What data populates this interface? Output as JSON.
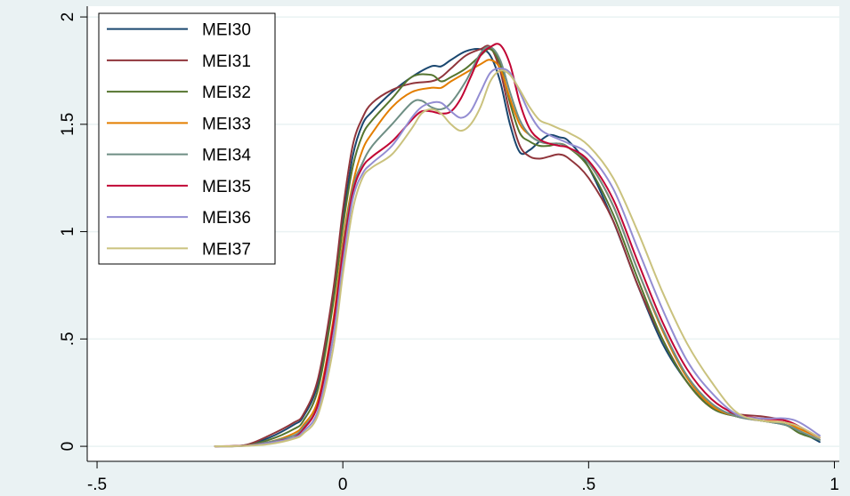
{
  "chart_data": {
    "type": "line",
    "title": "",
    "xlabel": "",
    "ylabel": "",
    "xlim": [
      -0.52,
      1.01
    ],
    "ylim": [
      -0.07,
      2.05
    ],
    "x_ticks": [
      -0.5,
      0,
      0.5,
      1
    ],
    "x_tick_labels": [
      "-.5",
      "0",
      ".5",
      "1"
    ],
    "y_ticks": [
      0,
      0.5,
      1,
      1.5,
      2
    ],
    "y_tick_labels": [
      "0",
      ".5",
      "1",
      "1.5",
      "2"
    ],
    "grid": "horizontal",
    "legend_position": "top-left",
    "series": [
      {
        "name": "MEI30",
        "color": "#1a476f",
        "x": [
          -0.26,
          -0.2,
          -0.15,
          -0.1,
          -0.08,
          -0.05,
          -0.02,
          0,
          0.02,
          0.04,
          0.06,
          0.1,
          0.14,
          0.18,
          0.2,
          0.22,
          0.25,
          0.28,
          0.3,
          0.32,
          0.34,
          0.36,
          0.38,
          0.4,
          0.42,
          0.44,
          0.46,
          0.5,
          0.55,
          0.6,
          0.65,
          0.7,
          0.75,
          0.8,
          0.85,
          0.9,
          0.93,
          0.97
        ],
        "y": [
          0,
          0.005,
          0.04,
          0.1,
          0.14,
          0.3,
          0.7,
          1.05,
          1.35,
          1.5,
          1.56,
          1.65,
          1.72,
          1.77,
          1.77,
          1.8,
          1.84,
          1.85,
          1.82,
          1.7,
          1.5,
          1.37,
          1.38,
          1.42,
          1.45,
          1.44,
          1.42,
          1.3,
          1.05,
          0.75,
          0.48,
          0.3,
          0.18,
          0.14,
          0.12,
          0.1,
          0.07,
          0.02
        ]
      },
      {
        "name": "MEI31",
        "color": "#90353b",
        "x": [
          -0.26,
          -0.2,
          -0.15,
          -0.1,
          -0.08,
          -0.05,
          -0.02,
          0,
          0.02,
          0.04,
          0.06,
          0.1,
          0.14,
          0.18,
          0.2,
          0.22,
          0.25,
          0.28,
          0.3,
          0.32,
          0.34,
          0.36,
          0.38,
          0.4,
          0.42,
          0.44,
          0.46,
          0.5,
          0.55,
          0.6,
          0.65,
          0.7,
          0.75,
          0.8,
          0.85,
          0.9,
          0.93,
          0.97
        ],
        "y": [
          0,
          0.005,
          0.05,
          0.11,
          0.15,
          0.32,
          0.72,
          1.1,
          1.4,
          1.53,
          1.6,
          1.66,
          1.69,
          1.7,
          1.72,
          1.76,
          1.82,
          1.85,
          1.86,
          1.75,
          1.55,
          1.4,
          1.35,
          1.34,
          1.35,
          1.36,
          1.34,
          1.25,
          1.05,
          0.75,
          0.5,
          0.3,
          0.18,
          0.15,
          0.14,
          0.12,
          0.09,
          0.04
        ]
      },
      {
        "name": "MEI32",
        "color": "#55752f",
        "x": [
          -0.26,
          -0.2,
          -0.15,
          -0.1,
          -0.08,
          -0.05,
          -0.02,
          0,
          0.02,
          0.04,
          0.06,
          0.1,
          0.14,
          0.18,
          0.2,
          0.22,
          0.25,
          0.28,
          0.3,
          0.32,
          0.34,
          0.36,
          0.38,
          0.4,
          0.42,
          0.44,
          0.46,
          0.5,
          0.55,
          0.6,
          0.65,
          0.7,
          0.75,
          0.8,
          0.85,
          0.9,
          0.93,
          0.97
        ],
        "y": [
          0,
          0.003,
          0.03,
          0.08,
          0.12,
          0.27,
          0.66,
          1.02,
          1.3,
          1.45,
          1.52,
          1.62,
          1.72,
          1.73,
          1.7,
          1.72,
          1.76,
          1.82,
          1.85,
          1.78,
          1.6,
          1.46,
          1.42,
          1.4,
          1.4,
          1.41,
          1.39,
          1.3,
          1.08,
          0.78,
          0.5,
          0.3,
          0.18,
          0.14,
          0.12,
          0.1,
          0.06,
          0.03
        ]
      },
      {
        "name": "MEI33",
        "color": "#e37e00",
        "x": [
          -0.26,
          -0.2,
          -0.15,
          -0.1,
          -0.08,
          -0.05,
          -0.02,
          0,
          0.02,
          0.04,
          0.06,
          0.1,
          0.14,
          0.18,
          0.2,
          0.22,
          0.25,
          0.28,
          0.3,
          0.32,
          0.34,
          0.36,
          0.38,
          0.4,
          0.42,
          0.44,
          0.46,
          0.5,
          0.55,
          0.6,
          0.65,
          0.7,
          0.75,
          0.8,
          0.85,
          0.9,
          0.93,
          0.97
        ],
        "y": [
          0,
          0.003,
          0.02,
          0.06,
          0.1,
          0.22,
          0.58,
          0.95,
          1.22,
          1.38,
          1.46,
          1.58,
          1.65,
          1.67,
          1.67,
          1.7,
          1.74,
          1.78,
          1.8,
          1.76,
          1.62,
          1.5,
          1.45,
          1.42,
          1.41,
          1.41,
          1.39,
          1.32,
          1.12,
          0.82,
          0.54,
          0.32,
          0.19,
          0.14,
          0.12,
          0.11,
          0.08,
          0.04
        ]
      },
      {
        "name": "MEI34",
        "color": "#6e8e84",
        "x": [
          -0.26,
          -0.2,
          -0.15,
          -0.1,
          -0.08,
          -0.05,
          -0.02,
          0,
          0.02,
          0.04,
          0.06,
          0.1,
          0.14,
          0.16,
          0.18,
          0.2,
          0.22,
          0.25,
          0.28,
          0.3,
          0.32,
          0.34,
          0.36,
          0.38,
          0.4,
          0.42,
          0.44,
          0.46,
          0.5,
          0.55,
          0.6,
          0.65,
          0.7,
          0.75,
          0.8,
          0.85,
          0.9,
          0.93,
          0.97
        ],
        "y": [
          0,
          0.003,
          0.02,
          0.05,
          0.09,
          0.2,
          0.55,
          0.92,
          1.2,
          1.32,
          1.4,
          1.5,
          1.6,
          1.61,
          1.58,
          1.57,
          1.6,
          1.7,
          1.83,
          1.86,
          1.8,
          1.65,
          1.52,
          1.45,
          1.42,
          1.41,
          1.41,
          1.39,
          1.32,
          1.12,
          0.82,
          0.55,
          0.33,
          0.2,
          0.14,
          0.12,
          0.1,
          0.07,
          0.03
        ]
      },
      {
        "name": "MEI35",
        "color": "#c10534",
        "x": [
          -0.26,
          -0.2,
          -0.15,
          -0.12,
          -0.1,
          -0.08,
          -0.05,
          -0.02,
          0,
          0.02,
          0.04,
          0.06,
          0.1,
          0.14,
          0.16,
          0.18,
          0.2,
          0.22,
          0.24,
          0.26,
          0.28,
          0.3,
          0.32,
          0.34,
          0.36,
          0.38,
          0.4,
          0.42,
          0.44,
          0.46,
          0.5,
          0.55,
          0.6,
          0.65,
          0.7,
          0.75,
          0.8,
          0.85,
          0.9,
          0.93,
          0.97
        ],
        "y": [
          0,
          0.003,
          0.015,
          0.03,
          0.04,
          0.08,
          0.2,
          0.56,
          0.9,
          1.18,
          1.3,
          1.35,
          1.42,
          1.52,
          1.56,
          1.56,
          1.55,
          1.56,
          1.62,
          1.72,
          1.82,
          1.86,
          1.87,
          1.78,
          1.6,
          1.48,
          1.43,
          1.41,
          1.4,
          1.39,
          1.33,
          1.15,
          0.86,
          0.58,
          0.36,
          0.22,
          0.15,
          0.13,
          0.12,
          0.09,
          0.04
        ]
      },
      {
        "name": "MEI36",
        "color": "#938dd2",
        "x": [
          -0.26,
          -0.2,
          -0.15,
          -0.1,
          -0.08,
          -0.05,
          -0.02,
          0,
          0.02,
          0.04,
          0.06,
          0.1,
          0.14,
          0.16,
          0.18,
          0.2,
          0.22,
          0.24,
          0.26,
          0.28,
          0.3,
          0.32,
          0.34,
          0.36,
          0.38,
          0.4,
          0.42,
          0.44,
          0.46,
          0.5,
          0.55,
          0.6,
          0.65,
          0.7,
          0.75,
          0.8,
          0.85,
          0.9,
          0.93,
          0.97
        ],
        "y": [
          0,
          0.002,
          0.015,
          0.04,
          0.07,
          0.17,
          0.5,
          0.85,
          1.15,
          1.27,
          1.32,
          1.4,
          1.53,
          1.58,
          1.6,
          1.6,
          1.56,
          1.53,
          1.56,
          1.65,
          1.74,
          1.76,
          1.74,
          1.65,
          1.55,
          1.48,
          1.45,
          1.43,
          1.41,
          1.36,
          1.2,
          0.92,
          0.64,
          0.4,
          0.25,
          0.15,
          0.13,
          0.13,
          0.11,
          0.05
        ]
      },
      {
        "name": "MEI37",
        "color": "#cac27e",
        "x": [
          -0.26,
          -0.2,
          -0.15,
          -0.1,
          -0.08,
          -0.05,
          -0.02,
          0,
          0.02,
          0.04,
          0.06,
          0.1,
          0.14,
          0.16,
          0.18,
          0.2,
          0.22,
          0.24,
          0.26,
          0.28,
          0.3,
          0.32,
          0.34,
          0.36,
          0.38,
          0.4,
          0.42,
          0.44,
          0.46,
          0.5,
          0.55,
          0.6,
          0.65,
          0.7,
          0.75,
          0.8,
          0.85,
          0.9,
          0.93,
          0.97
        ],
        "y": [
          0,
          0.002,
          0.01,
          0.035,
          0.06,
          0.15,
          0.45,
          0.8,
          1.1,
          1.25,
          1.3,
          1.36,
          1.48,
          1.55,
          1.57,
          1.55,
          1.5,
          1.47,
          1.5,
          1.58,
          1.7,
          1.75,
          1.73,
          1.66,
          1.58,
          1.52,
          1.5,
          1.48,
          1.46,
          1.4,
          1.25,
          1.0,
          0.72,
          0.48,
          0.3,
          0.16,
          0.12,
          0.11,
          0.09,
          0.04
        ]
      }
    ]
  }
}
